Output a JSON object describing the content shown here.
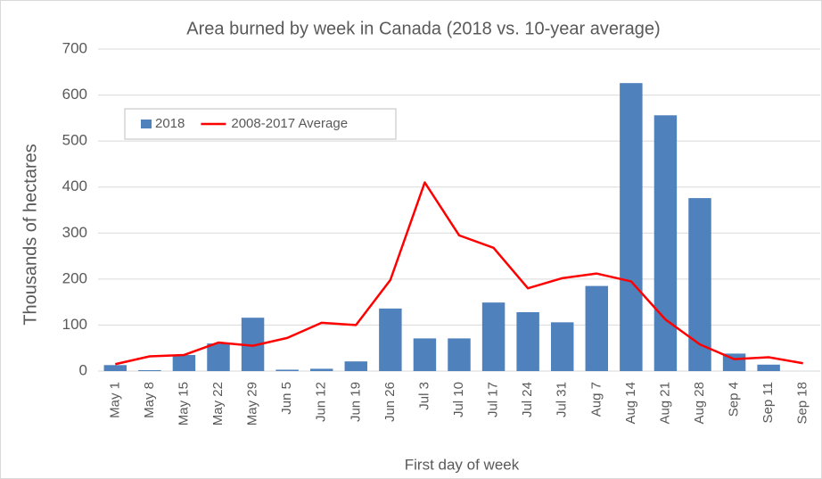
{
  "chart_data": {
    "type": "bar",
    "title": "Area burned by week in Canada (2018 vs. 10-year average)",
    "x_label": "First day of week",
    "y_label": "Thousands of hectares",
    "categories": [
      "May 1",
      "May 8",
      "May 15",
      "May 22",
      "May 29",
      "Jun 5",
      "Jun 12",
      "Jun 19",
      "Jun 26",
      "Jul 3",
      "Jul 10",
      "Jul 17",
      "Jul 24",
      "Jul 31",
      "Aug 7",
      "Aug 14",
      "Aug 21",
      "Aug 28",
      "Sep 4",
      "Sep 11",
      "Sep 18"
    ],
    "series": [
      {
        "name": "2018",
        "type": "bar",
        "color": "#4f81bd",
        "values": [
          13,
          2,
          35,
          60,
          116,
          3,
          5,
          21,
          136,
          71,
          71,
          149,
          128,
          106,
          185,
          626,
          556,
          376,
          38,
          14,
          null
        ]
      },
      {
        "name": "2008-2017 Average",
        "type": "line",
        "color": "#ff0000",
        "values": [
          15,
          32,
          35,
          62,
          55,
          72,
          105,
          100,
          198,
          410,
          295,
          268,
          180,
          202,
          212,
          195,
          112,
          58,
          26,
          30,
          17
        ]
      }
    ],
    "ylim": [
      0,
      700
    ],
    "yticks": [
      0,
      100,
      200,
      300,
      400,
      500,
      600,
      700
    ],
    "grid": true,
    "legend": "upper left"
  }
}
